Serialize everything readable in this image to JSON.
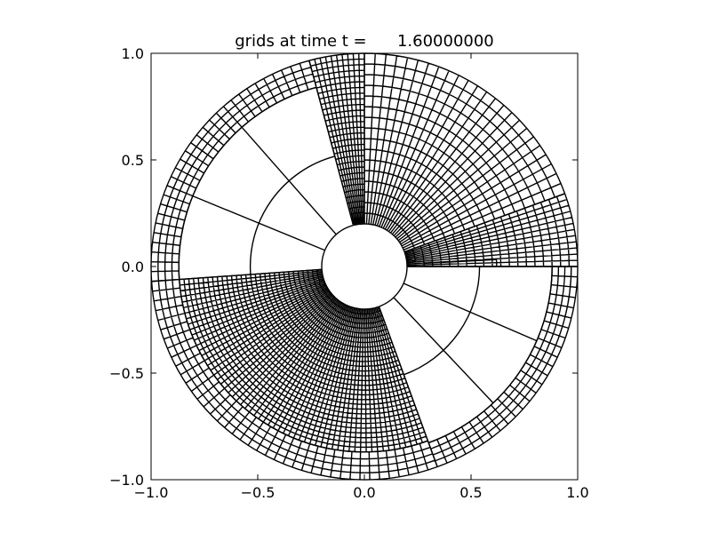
{
  "chart_data": {
    "type": "polar-mesh",
    "title": "grids at time t =      1.60000000",
    "xlim": [
      -1,
      1
    ],
    "ylim": [
      -1,
      1
    ],
    "xticks": [
      {
        "value": -1,
        "label": "−1.0"
      },
      {
        "value": -0.5,
        "label": "−0.5"
      },
      {
        "value": 0,
        "label": "0.0"
      },
      0.5,
      {
        "value": 1,
        "label": "1.0"
      }
    ],
    "yticks": [
      {
        "value": -1,
        "label": "−1.0"
      },
      {
        "value": -0.5,
        "label": "−0.5"
      },
      {
        "value": 0,
        "label": "0.0"
      },
      0.5,
      {
        "value": 1,
        "label": "1.0"
      }
    ],
    "color": "#000000",
    "patches": [
      {
        "r": [
          0.2,
          1.0
        ],
        "theta": [
          20,
          90
        ],
        "nr": 16,
        "ntheta": 24
      },
      {
        "r": [
          0.2,
          1.0
        ],
        "theta": [
          90,
          105
        ],
        "nr": 30,
        "ntheta": 10
      },
      {
        "r": [
          0.2,
          0.87
        ],
        "theta": [
          105,
          184
        ],
        "nr": 2,
        "ntheta": 3
      },
      {
        "r": [
          0.87,
          1.0
        ],
        "theta": [
          105,
          184
        ],
        "nr": 4,
        "ntheta": 30
      },
      {
        "r": [
          0.2,
          0.87
        ],
        "theta": [
          184,
          290
        ],
        "nr": 30,
        "ntheta": 60
      },
      {
        "r": [
          0.87,
          1.0
        ],
        "theta": [
          184,
          290
        ],
        "nr": 4,
        "ntheta": 40
      },
      {
        "r": [
          0.2,
          0.88
        ],
        "theta": [
          290,
          360
        ],
        "nr": 2,
        "ntheta": 3
      },
      {
        "r": [
          0.88,
          1.0
        ],
        "theta": [
          290,
          360
        ],
        "nr": 4,
        "ntheta": 25
      },
      {
        "r": [
          0.2,
          1.0
        ],
        "theta": [
          0,
          20
        ],
        "nr": 20,
        "ntheta": 12
      },
      {
        "r": [
          0.28,
          0.62
        ],
        "theta": [
          0,
          3
        ],
        "nr": 1,
        "ntheta": 1
      }
    ]
  }
}
